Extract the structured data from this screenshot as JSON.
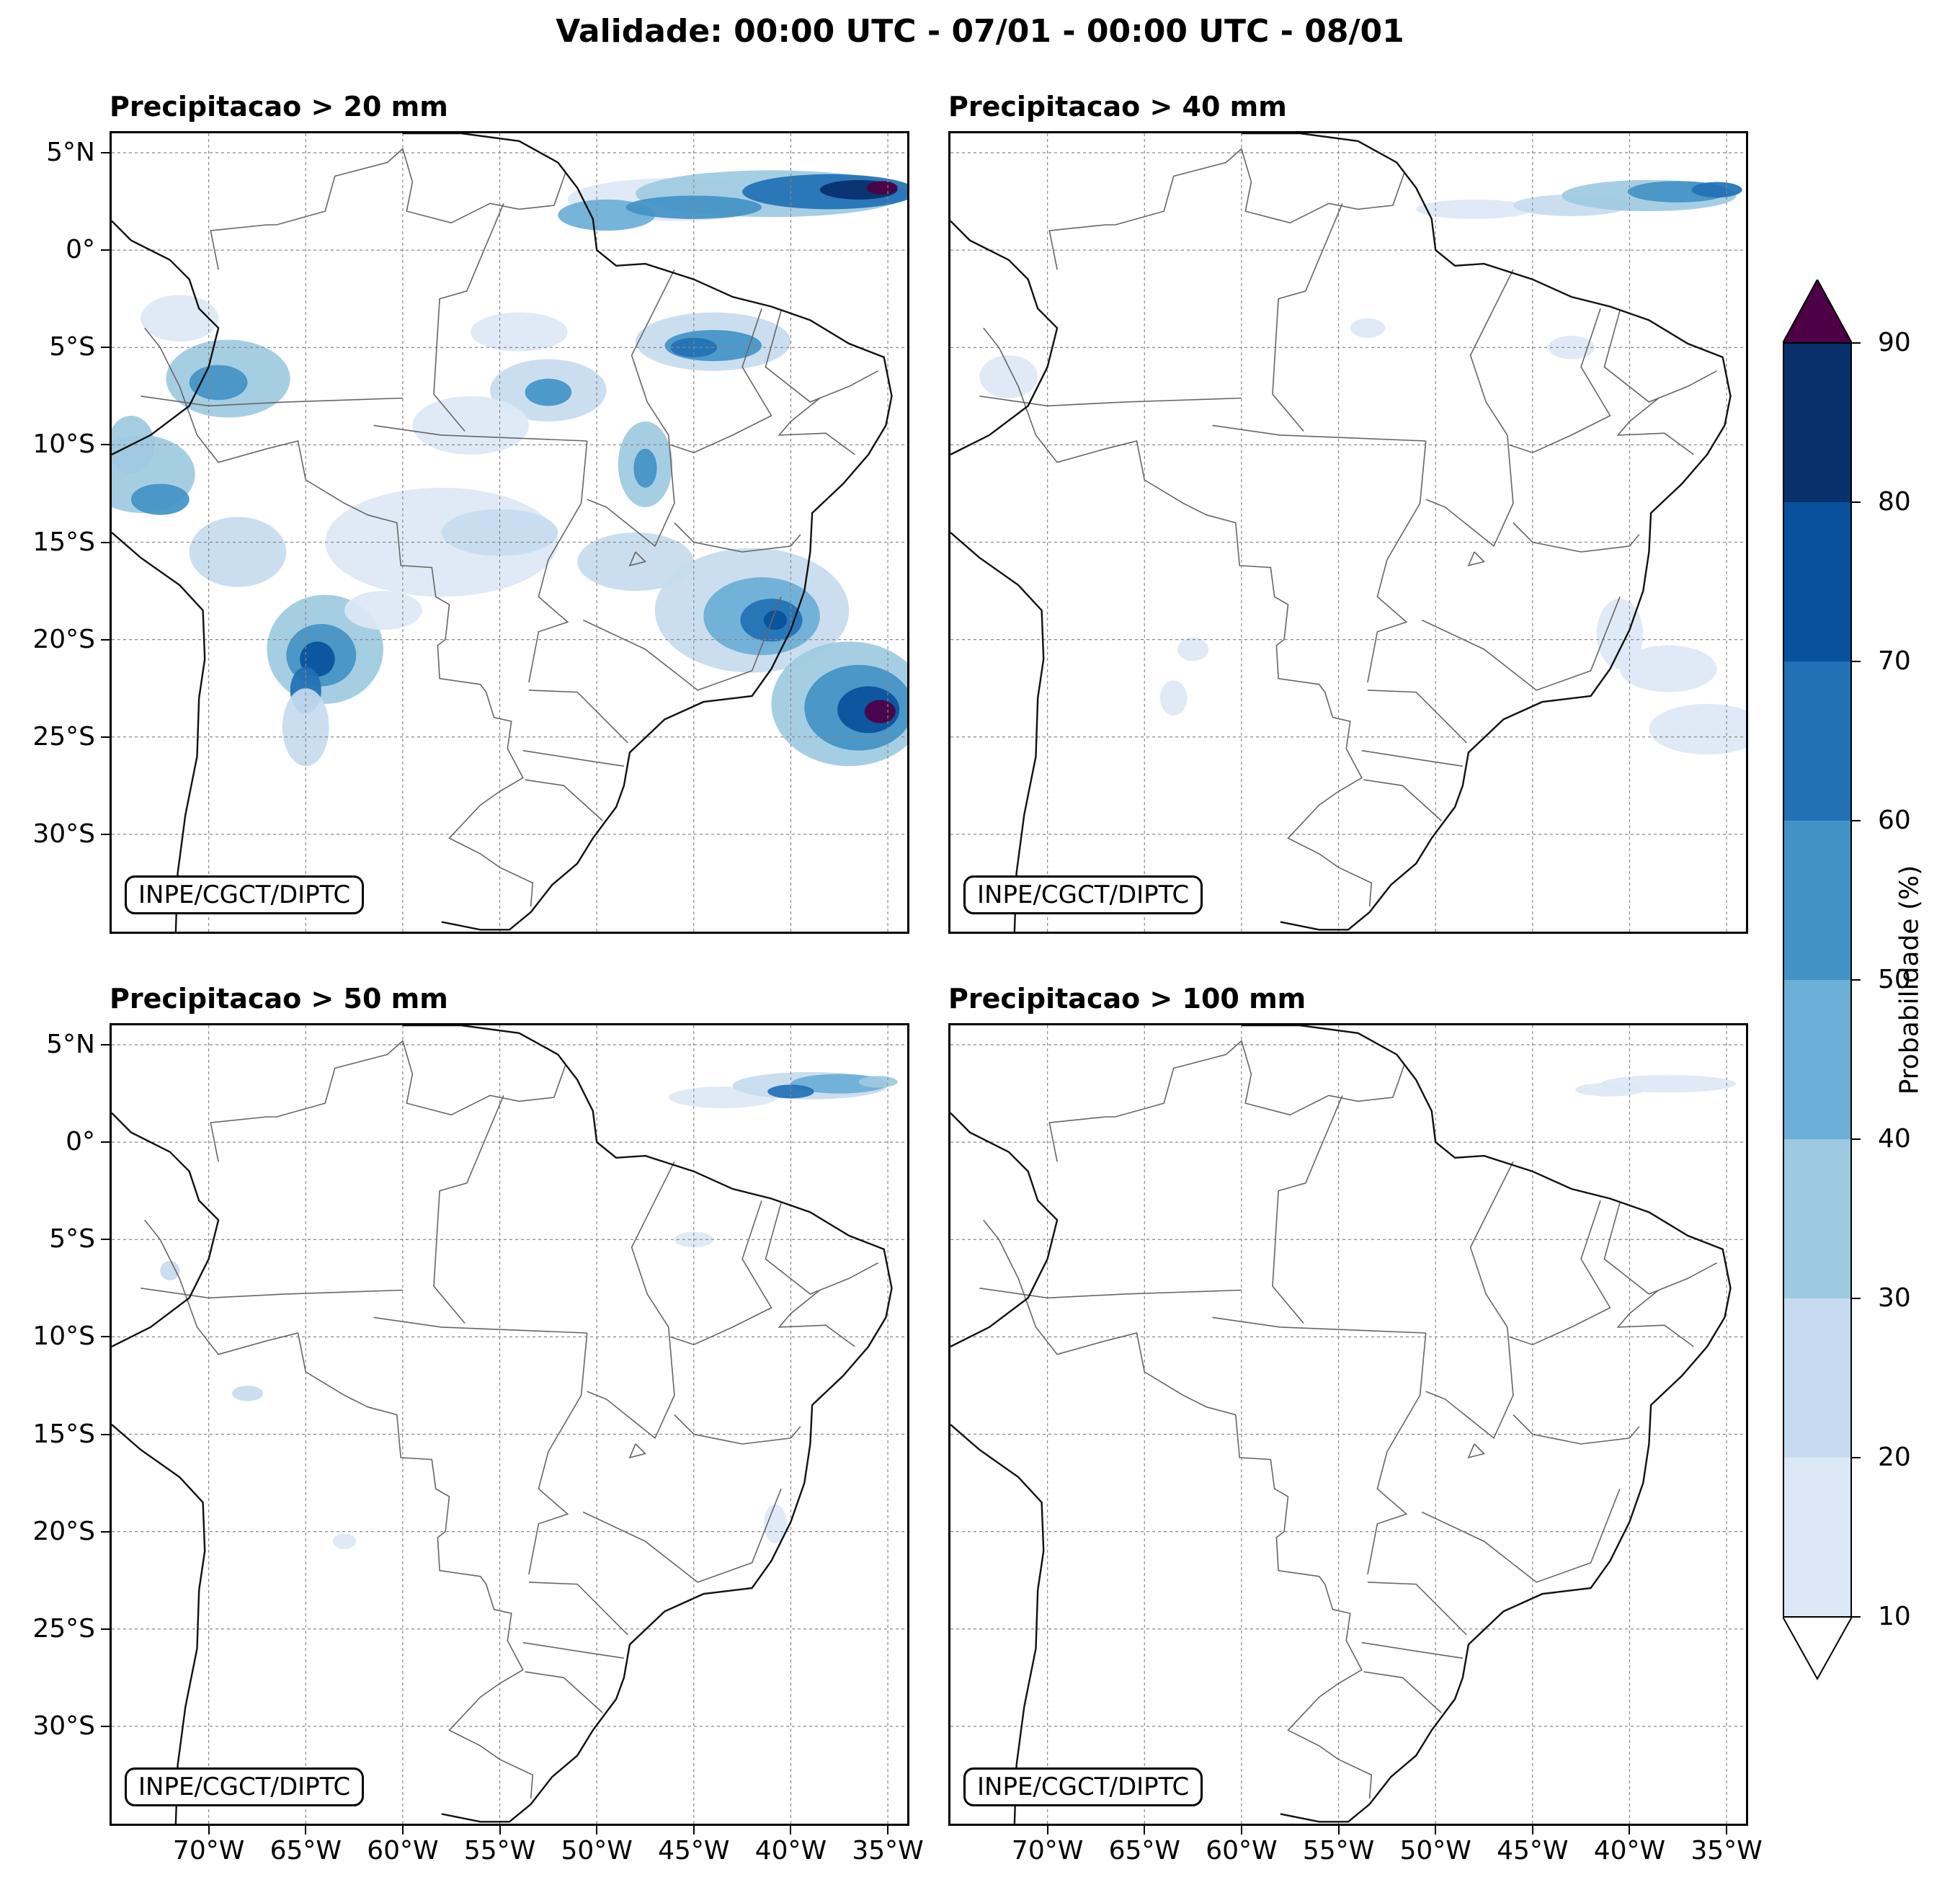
{
  "suptitle": "Validade: 00:00 UTC - 07/01 - 00:00 UTC - 08/01",
  "credit": "INPE/CGCT/DIPTC",
  "panels": [
    {
      "title": "Precipitacao > 20 mm",
      "threshold_mm": 20
    },
    {
      "title": "Precipitacao > 40 mm",
      "threshold_mm": 40
    },
    {
      "title": "Precipitacao > 50 mm",
      "threshold_mm": 50
    },
    {
      "title": "Precipitacao > 100 mm",
      "threshold_mm": 100
    }
  ],
  "axes": {
    "lat_ticks": [
      "5°N",
      "0°",
      "5°S",
      "10°S",
      "15°S",
      "20°S",
      "25°S",
      "30°S"
    ],
    "lat_values": [
      5,
      0,
      -5,
      -10,
      -15,
      -20,
      -25,
      -30
    ],
    "lon_ticks": [
      "70°W",
      "65°W",
      "60°W",
      "55°W",
      "50°W",
      "45°W",
      "40°W",
      "35°W"
    ],
    "lon_values": [
      -70,
      -65,
      -60,
      -55,
      -50,
      -45,
      -40,
      -35
    ],
    "lon_range": [
      -75,
      -34
    ],
    "lat_range": [
      -35,
      6
    ],
    "grid": true
  },
  "colorbar": {
    "label": "Probabilidade (%)",
    "tick_labels": [
      "10",
      "20",
      "30",
      "40",
      "50",
      "60",
      "70",
      "80",
      "90"
    ],
    "levels": [
      10,
      20,
      30,
      40,
      50,
      60,
      70,
      80,
      90
    ],
    "colors": [
      "#dce8f5",
      "#c6dbef",
      "#9ecae1",
      "#6baed6",
      "#4292c6",
      "#2171b5",
      "#08519c",
      "#08306b"
    ],
    "over_color": "#4d0045",
    "under_color": "#ffffff",
    "extend": "both"
  }
}
